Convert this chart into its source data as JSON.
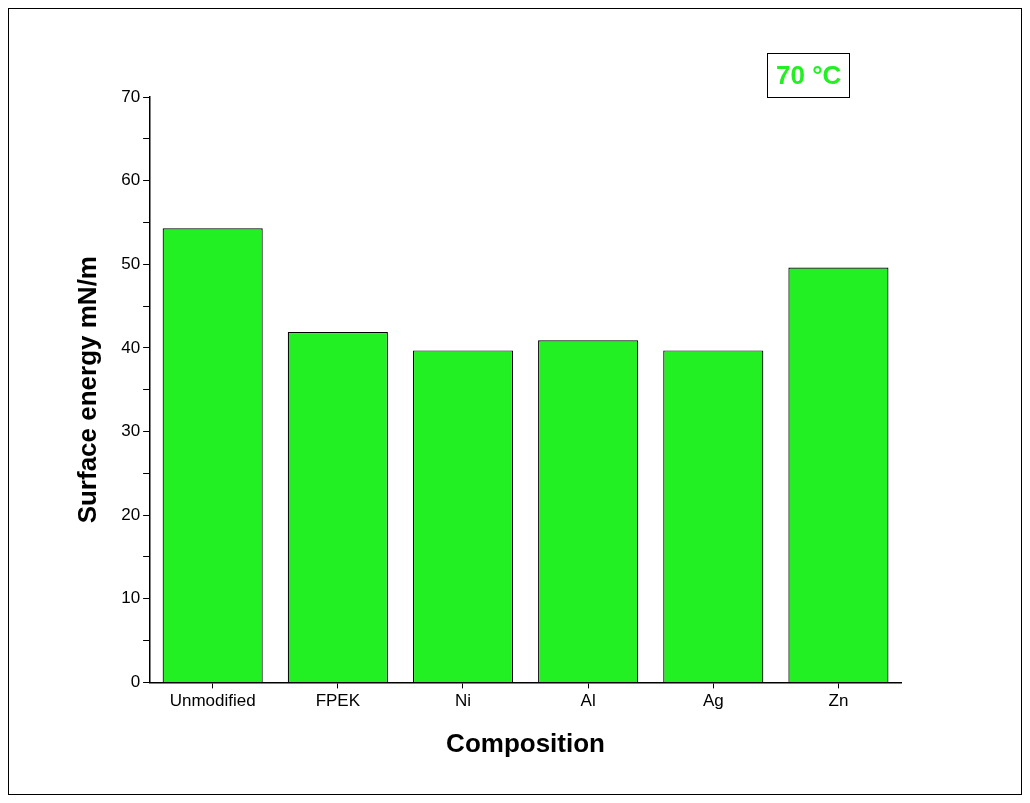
{
  "chart_data": {
    "type": "bar",
    "xlabel": "Composition",
    "ylabel": "Surface energy mN/m",
    "categories": [
      "Unmodified",
      "FPEK",
      "Ni",
      "Al",
      "Ag",
      "Zn"
    ],
    "values": [
      54.3,
      41.9,
      39.7,
      40.9,
      39.7,
      49.6
    ],
    "color": "#22f022",
    "ylim": [
      0,
      70
    ],
    "yticks": [
      0,
      {
        "value": 5,
        "label": null
      },
      10,
      {
        "value": 15,
        "label": null
      },
      20,
      {
        "value": 25,
        "label": null
      },
      30,
      {
        "value": 35,
        "label": null
      },
      40,
      {
        "value": 45,
        "label": null
      },
      50,
      {
        "value": 55,
        "label": null
      },
      60,
      {
        "value": 65,
        "label": null
      },
      70
    ],
    "annotations": [
      "70 °C"
    ],
    "grid": false,
    "legend": false
  }
}
